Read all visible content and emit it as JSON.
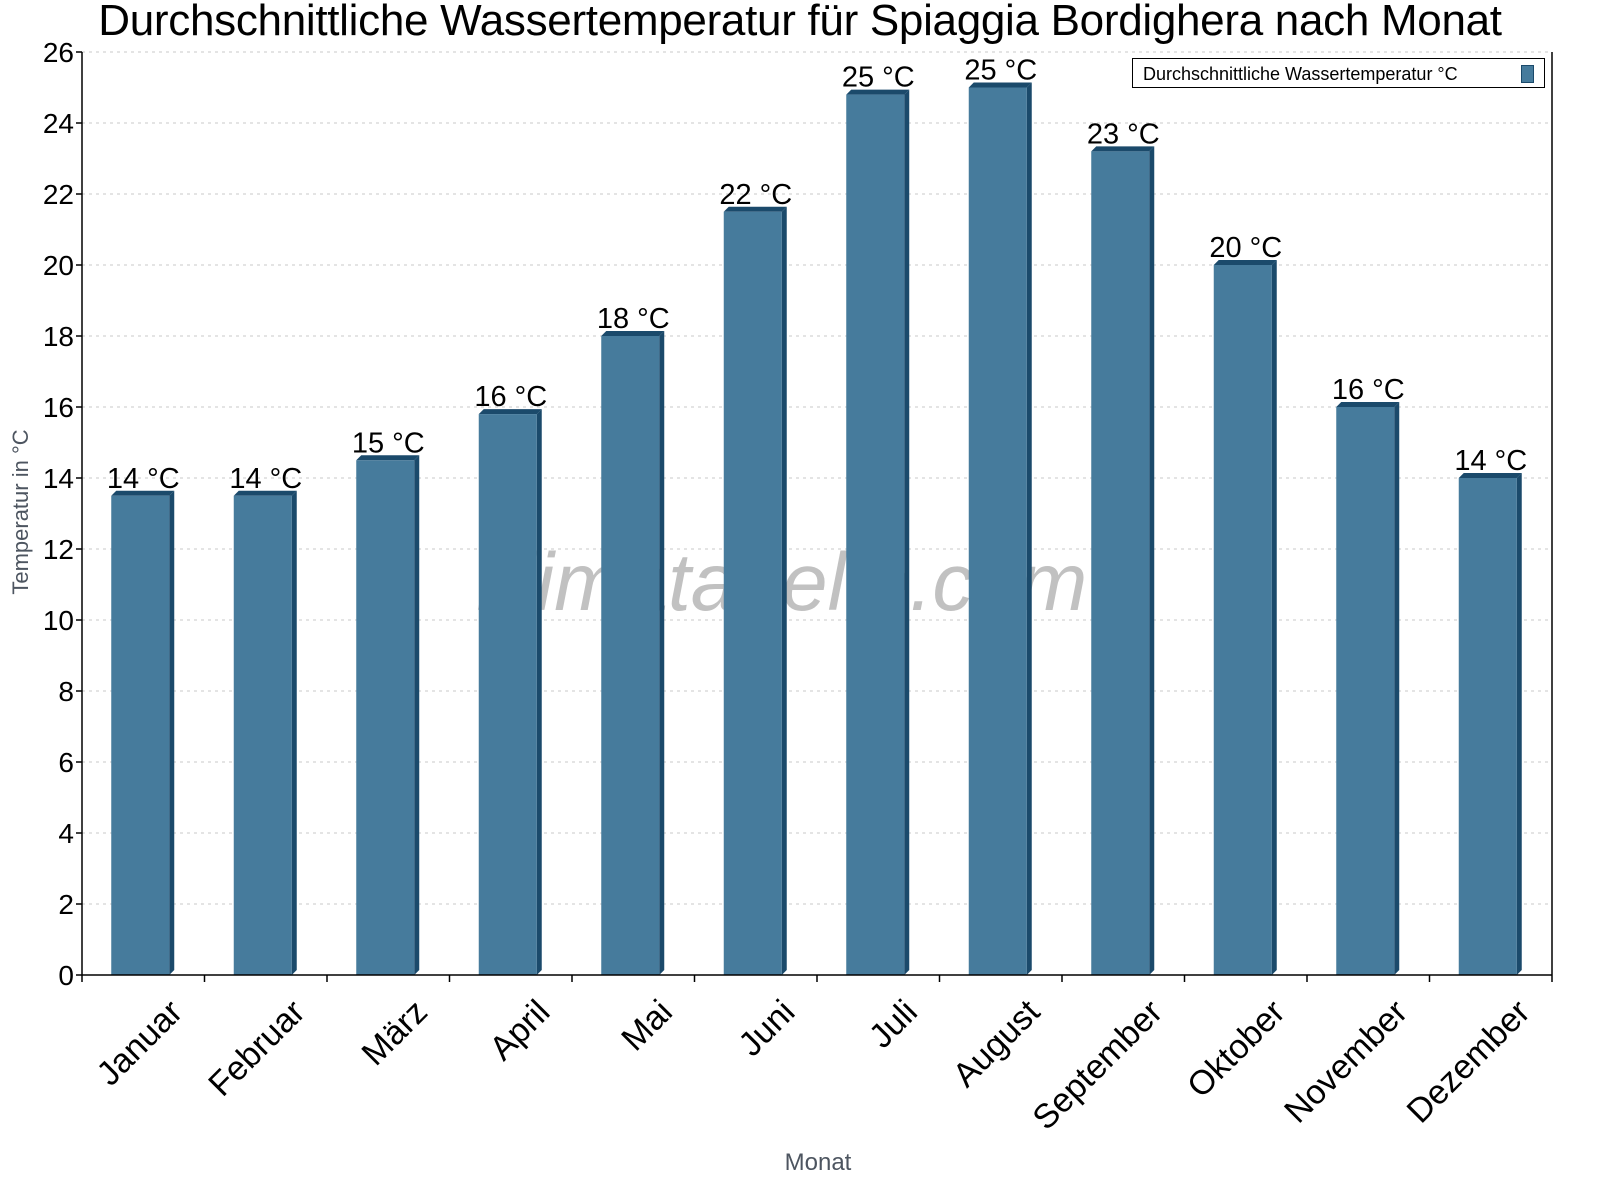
{
  "title": "Durchschnittliche Wassertemperatur für Spiaggia Bordighera nach Monat",
  "watermark": "klimatabelle.com",
  "legend": {
    "label": "Durchschnittliche Wassertemperatur °C",
    "color": "#467b9c"
  },
  "colors": {
    "bar_front": "#467b9c",
    "bar_side": "#1b4a6b",
    "grid": "#c8c8c8",
    "axis": "#000000",
    "axis_title": "#4d5560"
  },
  "chart_data": {
    "type": "bar",
    "title": "Durchschnittliche Wassertemperatur für Spiaggia Bordighera nach Monat",
    "xlabel": "Monat",
    "ylabel": "Temperatur in °C",
    "ylim": [
      0,
      26
    ],
    "yticks": [
      0,
      2,
      4,
      6,
      8,
      10,
      12,
      14,
      16,
      18,
      20,
      22,
      24,
      26
    ],
    "grid": true,
    "legend_position": "top-right",
    "categories": [
      "Januar",
      "Februar",
      "März",
      "April",
      "Mai",
      "Juni",
      "Juli",
      "August",
      "September",
      "Oktober",
      "November",
      "Dezember"
    ],
    "series": [
      {
        "name": "Durchschnittliche Wassertemperatur °C",
        "values": [
          13.5,
          13.5,
          14.5,
          15.8,
          18.0,
          21.5,
          24.8,
          25.0,
          23.2,
          20.0,
          16.0,
          14.0
        ],
        "labels": [
          "14 °C",
          "14 °C",
          "15 °C",
          "16 °C",
          "18 °C",
          "22 °C",
          "25 °C",
          "25 °C",
          "23 °C",
          "20 °C",
          "16 °C",
          "14 °C"
        ]
      }
    ]
  }
}
